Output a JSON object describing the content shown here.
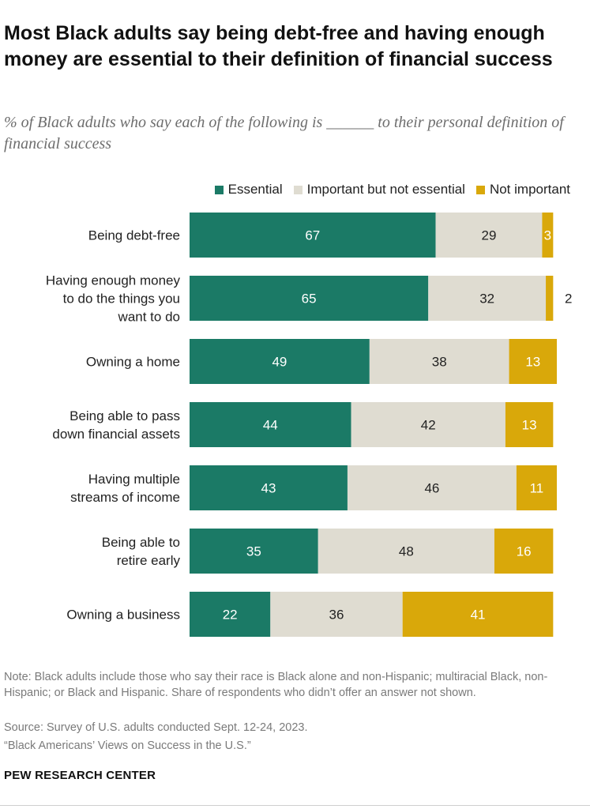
{
  "header": {
    "title": "Most Black adults say being debt-free and having enough money are essential to their definition of financial success",
    "subtitle": "% of Black adults who say each of the following is ______ to their personal definition of financial success"
  },
  "colors": {
    "essential": "#1b7a66",
    "important": "#dfdcd1",
    "not_important": "#d9a80a"
  },
  "chart_data": {
    "type": "bar",
    "orientation": "horizontal",
    "stacked": true,
    "categories": [
      [
        "Being debt-free"
      ],
      [
        "Having enough money",
        "to do the things you",
        "want to do"
      ],
      [
        "Owning a home"
      ],
      [
        "Being able to pass",
        "down financial assets"
      ],
      [
        "Having multiple",
        "streams of income"
      ],
      [
        "Being able to",
        "retire early"
      ],
      [
        "Owning a business"
      ]
    ],
    "series": [
      {
        "name": "Essential",
        "values": [
          67,
          65,
          49,
          44,
          43,
          35,
          22
        ]
      },
      {
        "name": "Important but not essential",
        "values": [
          29,
          32,
          38,
          42,
          46,
          48,
          36
        ]
      },
      {
        "name": "Not important",
        "values": [
          3,
          2,
          13,
          13,
          11,
          16,
          41
        ]
      }
    ],
    "xlim": [
      0,
      100
    ],
    "grid": false,
    "legend": "top-right"
  },
  "notes": {
    "note": "Note: Black adults include those who say their race is Black alone and non-Hispanic; multiracial Black, non-Hispanic; or Black and Hispanic. Share of respondents who didn’t offer an answer not shown.",
    "source": "Source: Survey of U.S. adults conducted Sept. 12-24, 2023.",
    "report": "“Black Americans’ Views on Success in the U.S.”"
  },
  "footer": {
    "logo": "PEW RESEARCH CENTER"
  }
}
